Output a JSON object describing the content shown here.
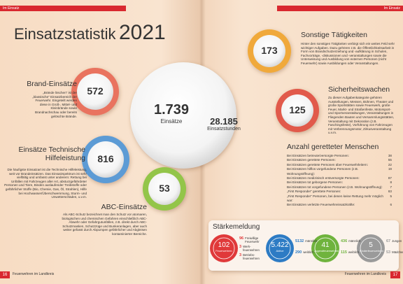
{
  "header": {
    "left_tag": "Im Einsatz",
    "right_tag": "Im Einsatz"
  },
  "title": {
    "main": "Einsatzstatistik",
    "year": "2021"
  },
  "totals": {
    "missions": "1.739",
    "missions_label": "Einsätze",
    "hours": "28.185",
    "hours_label": "Einsatzstunden"
  },
  "sections": [
    {
      "title": "Brand-Einsätze",
      "value": "572",
      "text": "„Brände löschen“ ist der „klassische“ Einsatzbereich der Feuerwehr. Eingeteilt werden diese in Groß-, Mittel- und Kleinbrände sowie Brandnachschau oder bereits gelöschte Brände."
    },
    {
      "title": "Einsätze Technische Hilfeleistung",
      "value": "816",
      "text": "Die häufigste Einsatzart ist die Technische Hilfeleistung, weit vor Brandeinsätzen. Das Einsatzspektrum ist sehr vielfältig und umfasst unter anderem: Rettung bei Unfällen mit Fahrzeugen aller Art, absturzgefährdeter Personen und Tiere, Binden auslaufender Treibstoffe oder gefährlicher Stoffe (Bio, Chemie, Gas, Öl, Strahlen), Hilfe bei Hochwasser/Überschwemmung, Sturm- und Unwetterschäden, u.v.m."
    },
    {
      "title": "ABC-Einsätze",
      "value": "53",
      "text": "Als ABC-Schutz bezeichnet man den Schutz vor atomaren, biologischen und chemischen Gefahren einschließlich ABC-Abwehr oder Gefahrgutunfällen, z.B. direkt durch ABC-Schutzmasken, Schutzzüge und Bunkeranlagen, aber auch weiter gefasst durch Abpumpen gefährlicher und Abgleisen kontaminierter Bereiche."
    },
    {
      "title": "Sonstige Tätigkeiten",
      "value": "173",
      "text": "Hinter den sonstigen Tätigkeiten verbirgt sich ein weites Feld sehr wichtiger Aufgaben. Dazu gehören z.B. die Öffentlichkeitsarbeit in Form von Brandschutzerziehung und -aufklärung in Schulen, Fachvorträge, -diskussionen und -veranstaltungen sowie die Unterweisung und Ausbildung von externen Personen (nicht Feuerwehr) sowie Ausbildungen oder Veranstaltungen."
    },
    {
      "title": "Sicherheitswachen",
      "value": "125",
      "text": "Zu dieser Aufgabenkategorie gehören Ausstellungen, Messen, Bühnen, Theater und große Sportstätten sowie Feuerwerk, große Feuer, Markt- und Straßenfeste, Motorsport- und Sportveranstaltungen, Veranstaltungen in Fliegenden Bauten und Versammlungsstätten, Veranstaltung mit Dekoration (z.B. Faschingsfeste), Vorführung von Fahrzeugen mit Verbrennungsmotor, Zirkusveranstaltung u.v.m."
    }
  ],
  "rescued": {
    "title": "Anzahl geretteter Menschen",
    "rows": [
      {
        "label": "Bei Einsätzen betreute/versorgte Personen:",
        "value": "38"
      },
      {
        "label": "Bei Einsätzen gerettete Personen:",
        "value": "55"
      },
      {
        "label": "Bei Einsätzen gerettete Personen über Feuerwehrleitern:",
        "value": "22"
      },
      {
        "label": "Bei Einsätzen hilflos vorgefundene Personen (z.B. Wohnungsöffnung):",
        "value": "19"
      },
      {
        "label": "Bei Einsätzen medizinisch erstversorgte Personen:",
        "value": "87"
      },
      {
        "label": "Bei Einsätzen tot geborgene Personen:",
        "value": "8"
      },
      {
        "label": "Bei Einsätzen tot vorgefundene Personen (z.B. Wohnungsöffnung):",
        "value": "7"
      },
      {
        "label": "„First Responder“ gerettete Personen:",
        "value": "83"
      },
      {
        "label": "„First Responder“ Personen, bei denen keine Rettung mehr möglich war:",
        "value": "5"
      },
      {
        "label": "Bei Einsätzen verletzte Feuerwehreinsatzkräfte:",
        "value": "6"
      }
    ]
  },
  "strength": {
    "title": "Stärkemeldung",
    "groups": [
      {
        "value": "102",
        "label": "Feuerwehren",
        "details": [
          {
            "value": "96",
            "label": "Freiwillige Feuerwehr"
          },
          {
            "value": "3",
            "label": "Werk-feuerwehren"
          },
          {
            "value": "3",
            "label": "Betriebs-feuerwehren"
          }
        ]
      },
      {
        "value": "5.422",
        "label": "Aktive",
        "details": [
          {
            "value": "5132",
            "label": "männlich"
          },
          {
            "value": "290",
            "label": "weiblich"
          }
        ]
      },
      {
        "value": "41",
        "label": "Jugendfeuerwehren",
        "details": [
          {
            "value": "436",
            "label": "männlich"
          },
          {
            "value": "115",
            "label": "weiblich"
          }
        ]
      },
      {
        "value": "5",
        "label": "Kinderfeuerwehren",
        "details": [
          {
            "value": "67",
            "label": "Jungen"
          },
          {
            "value": "53",
            "label": "Mädchen"
          }
        ]
      }
    ]
  },
  "footer": {
    "left_page": "16",
    "left_text": "Feuerwehren im Landkreis",
    "right_text": "Feuerwehren im Landkreis",
    "right_page": "17"
  }
}
